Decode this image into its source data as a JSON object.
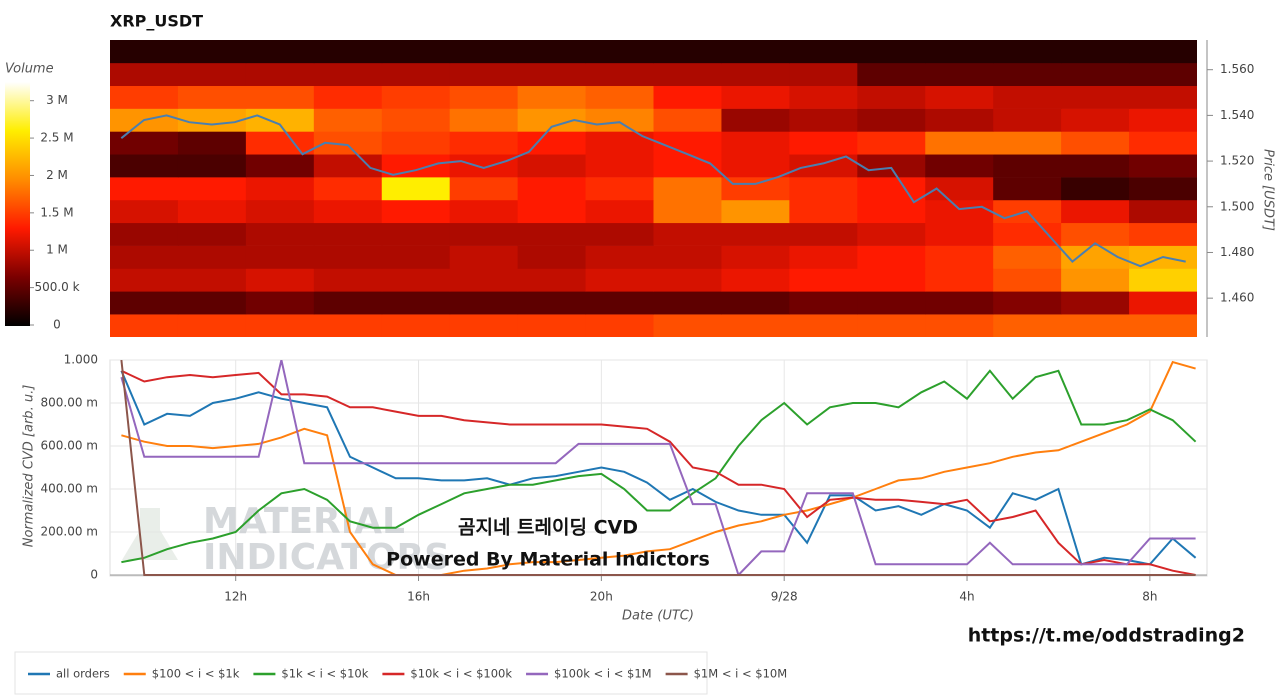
{
  "chart_data": [
    {
      "type": "heatmap",
      "title": "XRP_USDT",
      "colorbar_label": "Volume",
      "y_label": "Price [USDT]",
      "xlim": [
        9.25,
        33.25
      ],
      "ylim": [
        1.443,
        1.573
      ],
      "x_bins": [
        9.25,
        10.75,
        12.25,
        13.75,
        15.25,
        16.75,
        18.25,
        19.75,
        21.25,
        22.75,
        24.25,
        25.75,
        27.25,
        28.75,
        30.25,
        31.75,
        33.25
      ],
      "y_bins": [
        1.443,
        1.453,
        1.463,
        1.473,
        1.483,
        1.493,
        1.503,
        1.513,
        1.523,
        1.533,
        1.543,
        1.553,
        1.563,
        1.573
      ],
      "z": [
        [
          1500000.0,
          1500000.0,
          1500000.0,
          1500000.0,
          1500000.0,
          1500000.0,
          1500000.0,
          1500000.0,
          1600000.0,
          1600000.0,
          1600000.0,
          1600000.0,
          1600000.0,
          1700000.0,
          1700000.0,
          1700000.0
        ],
        [
          500000.0,
          500000.0,
          600000.0,
          500000.0,
          500000.0,
          500000.0,
          500000.0,
          500000.0,
          500000.0,
          500000.0,
          600000.0,
          600000.0,
          600000.0,
          700000.0,
          800000.0,
          1200000.0
        ],
        [
          1000000.0,
          1000000.0,
          1100000.0,
          1000000.0,
          1000000.0,
          1000000.0,
          1000000.0,
          1100000.0,
          1100000.0,
          1200000.0,
          1300000.0,
          1300000.0,
          1400000.0,
          1600000.0,
          2000000.0,
          2400000.0
        ],
        [
          900000.0,
          900000.0,
          900000.0,
          900000.0,
          900000.0,
          1000000.0,
          900000.0,
          1000000.0,
          1000000.0,
          1100000.0,
          1200000.0,
          1300000.0,
          1400000.0,
          1700000.0,
          2100000.0,
          2200000.0
        ],
        [
          800000.0,
          800000.0,
          900000.0,
          900000.0,
          900000.0,
          900000.0,
          900000.0,
          900000.0,
          1000000.0,
          1000000.0,
          1000000.0,
          1100000.0,
          1200000.0,
          1400000.0,
          1600000.0,
          1500000.0
        ],
        [
          1100000.0,
          1200000.0,
          1100000.0,
          1200000.0,
          1300000.0,
          1200000.0,
          1300000.0,
          1200000.0,
          1800000.0,
          2000000.0,
          1400000.0,
          1300000.0,
          1200000.0,
          1500000.0,
          1200000.0,
          900000.0
        ],
        [
          1300000.0,
          1300000.0,
          1200000.0,
          1400000.0,
          2600000.0,
          1500000.0,
          1300000.0,
          1400000.0,
          1800000.0,
          1500000.0,
          1400000.0,
          1300000.0,
          1100000.0,
          500000.0,
          300000.0,
          400000.0
        ],
        [
          400000.0,
          400000.0,
          600000.0,
          1000000.0,
          1300000.0,
          1200000.0,
          1100000.0,
          1200000.0,
          1300000.0,
          1200000.0,
          1100000.0,
          800000.0,
          600000.0,
          500000.0,
          500000.0,
          600000.0
        ],
        [
          600000.0,
          500000.0,
          1400000.0,
          1600000.0,
          1500000.0,
          1400000.0,
          1300000.0,
          1200000.0,
          1300000.0,
          1200000.0,
          1300000.0,
          1400000.0,
          1800000.0,
          1800000.0,
          1600000.0,
          1400000.0
        ],
        [
          2000000.0,
          2100000.0,
          2200000.0,
          1700000.0,
          1600000.0,
          1800000.0,
          2000000.0,
          1900000.0,
          1600000.0,
          800000.0,
          900000.0,
          800000.0,
          900000.0,
          1000000.0,
          1100000.0,
          1200000.0
        ],
        [
          1500000.0,
          1600000.0,
          1600000.0,
          1400000.0,
          1500000.0,
          1600000.0,
          1800000.0,
          1700000.0,
          1300000.0,
          1200000.0,
          1100000.0,
          1000000.0,
          1100000.0,
          1000000.0,
          1000000.0,
          1000000.0
        ],
        [
          900000.0,
          900000.0,
          900000.0,
          900000.0,
          900000.0,
          900000.0,
          900000.0,
          900000.0,
          900000.0,
          900000.0,
          900000.0,
          500000.0,
          500000.0,
          500000.0,
          500000.0,
          500000.0
        ],
        [
          200000.0,
          200000.0,
          200000.0,
          200000.0,
          200000.0,
          200000.0,
          200000.0,
          200000.0,
          200000.0,
          200000.0,
          200000.0,
          200000.0,
          200000.0,
          200000.0,
          200000.0,
          200000.0
        ]
      ],
      "clim": [
        0,
        3250000
      ],
      "colormap": [
        "#000000",
        "#7a0000",
        "#ff1a00",
        "#ff8c00",
        "#ffee00",
        "#ffffff"
      ],
      "cticks": [
        0,
        {
          "value": 500000,
          "label": "500.0 k"
        },
        {
          "value": 1000000,
          "label": "1 M"
        },
        {
          "value": 1500000,
          "label": "1.5 M"
        },
        {
          "value": 2000000,
          "label": "2 M"
        },
        {
          "value": 2500000,
          "label": "2.5 M"
        },
        {
          "value": 3000000,
          "label": "3 M"
        }
      ],
      "yticks": [
        {
          "value": 1.46,
          "label": "1.460"
        },
        {
          "value": 1.48,
          "label": "1.480"
        },
        {
          "value": 1.5,
          "label": "1.500"
        },
        {
          "value": 1.52,
          "label": "1.520"
        },
        {
          "value": 1.54,
          "label": "1.540"
        },
        {
          "value": 1.56,
          "label": "1.560"
        }
      ],
      "line": {
        "color": "#4a7fb0",
        "x": [
          9.5,
          10,
          10.5,
          11,
          11.5,
          12,
          12.5,
          13,
          13.5,
          14,
          14.5,
          15,
          15.5,
          16,
          16.5,
          17,
          17.5,
          18,
          18.5,
          19,
          19.5,
          20,
          20.5,
          21,
          21.5,
          22,
          22.5,
          23,
          23.5,
          24,
          24.5,
          25,
          25.5,
          26,
          26.5,
          27,
          27.5,
          28,
          28.5,
          29,
          29.5,
          30,
          30.5,
          31,
          31.5,
          32,
          32.5,
          33
        ],
        "values": [
          1.53,
          1.538,
          1.54,
          1.537,
          1.536,
          1.537,
          1.54,
          1.536,
          1.523,
          1.528,
          1.527,
          1.517,
          1.514,
          1.516,
          1.519,
          1.52,
          1.517,
          1.52,
          1.524,
          1.535,
          1.538,
          1.536,
          1.537,
          1.531,
          1.527,
          1.523,
          1.519,
          1.51,
          1.51,
          1.513,
          1.517,
          1.519,
          1.522,
          1.516,
          1.517,
          1.502,
          1.508,
          1.499,
          1.5,
          1.495,
          1.498,
          1.487,
          1.476,
          1.484,
          1.478,
          1.474,
          1.478,
          1.476
        ]
      }
    },
    {
      "type": "line",
      "x_label": "Date (UTC)",
      "y_label": "Normalized CVD [arb. u.]",
      "grid": true,
      "xlim": [
        9.25,
        33.25
      ],
      "ylim": [
        0,
        1.0
      ],
      "xticks": [
        {
          "value": 12,
          "label": "12h"
        },
        {
          "value": 16,
          "label": "16h"
        },
        {
          "value": 20,
          "label": "20h"
        },
        {
          "value": 24,
          "label": "9/28"
        },
        {
          "value": 28,
          "label": "4h"
        },
        {
          "value": 32,
          "label": "8h"
        }
      ],
      "yticks": [
        0,
        {
          "value": 0.2,
          "label": "200.00 m"
        },
        {
          "value": 0.4,
          "label": "400.00 m"
        },
        {
          "value": 0.6,
          "label": "600.00 m"
        },
        {
          "value": 0.8,
          "label": "800.00 m"
        },
        {
          "value": 1.0,
          "label": "1.000"
        }
      ],
      "x": [
        9.5,
        10,
        10.5,
        11,
        11.5,
        12,
        12.5,
        13,
        13.5,
        14,
        14.5,
        15,
        15.5,
        16,
        16.5,
        17,
        17.5,
        18,
        18.5,
        19,
        19.5,
        20,
        20.5,
        21,
        21.5,
        22,
        22.5,
        23,
        23.5,
        24,
        24.5,
        25,
        25.5,
        26,
        26.5,
        27,
        27.5,
        28,
        28.5,
        29,
        29.5,
        30,
        30.5,
        31,
        31.5,
        32,
        32.5,
        33
      ],
      "series": [
        {
          "name": "all orders",
          "color": "#1f77b4",
          "values": [
            0.95,
            0.7,
            0.75,
            0.74,
            0.8,
            0.82,
            0.85,
            0.82,
            0.8,
            0.78,
            0.55,
            0.5,
            0.45,
            0.45,
            0.44,
            0.44,
            0.45,
            0.42,
            0.45,
            0.46,
            0.48,
            0.5,
            0.48,
            0.43,
            0.35,
            0.4,
            0.34,
            0.3,
            0.28,
            0.28,
            0.15,
            0.37,
            0.37,
            0.3,
            0.32,
            0.28,
            0.33,
            0.3,
            0.22,
            0.38,
            0.35,
            0.4,
            0.05,
            0.08,
            0.07,
            0.05,
            0.17,
            0.08
          ]
        },
        {
          "name": "$100 < i < $1k",
          "color": "#ff7f0e",
          "values": [
            0.65,
            0.62,
            0.6,
            0.6,
            0.59,
            0.6,
            0.61,
            0.64,
            0.68,
            0.65,
            0.2,
            0.05,
            0,
            0,
            0,
            0.02,
            0.03,
            0.05,
            0.06,
            0.06,
            0.07,
            0.08,
            0.09,
            0.11,
            0.12,
            0.16,
            0.2,
            0.23,
            0.25,
            0.28,
            0.3,
            0.33,
            0.36,
            0.4,
            0.44,
            0.45,
            0.48,
            0.5,
            0.52,
            0.55,
            0.57,
            0.58,
            0.62,
            0.66,
            0.7,
            0.76,
            0.99,
            0.96
          ]
        },
        {
          "name": "$1k < i < $10k",
          "color": "#2ca02c",
          "values": [
            0.06,
            0.08,
            0.12,
            0.15,
            0.17,
            0.2,
            0.3,
            0.38,
            0.4,
            0.35,
            0.25,
            0.22,
            0.22,
            0.28,
            0.33,
            0.38,
            0.4,
            0.42,
            0.42,
            0.44,
            0.46,
            0.47,
            0.4,
            0.3,
            0.3,
            0.38,
            0.45,
            0.6,
            0.72,
            0.8,
            0.7,
            0.78,
            0.8,
            0.8,
            0.78,
            0.85,
            0.9,
            0.82,
            0.95,
            0.82,
            0.92,
            0.95,
            0.7,
            0.7,
            0.72,
            0.77,
            0.72,
            0.62
          ]
        },
        {
          "name": "$10k < i < $100k",
          "color": "#d62728",
          "values": [
            0.95,
            0.9,
            0.92,
            0.93,
            0.92,
            0.93,
            0.94,
            0.84,
            0.84,
            0.83,
            0.78,
            0.78,
            0.76,
            0.74,
            0.74,
            0.72,
            0.71,
            0.7,
            0.7,
            0.7,
            0.7,
            0.7,
            0.69,
            0.68,
            0.62,
            0.5,
            0.48,
            0.42,
            0.42,
            0.4,
            0.27,
            0.35,
            0.36,
            0.35,
            0.35,
            0.34,
            0.33,
            0.35,
            0.25,
            0.27,
            0.3,
            0.15,
            0.05,
            0.07,
            0.05,
            0.05,
            0.02,
            0
          ]
        },
        {
          "name": "$100k < i < $1M",
          "color": "#9467bd",
          "values": [
            0.92,
            0.55,
            0.55,
            0.55,
            0.55,
            0.55,
            0.55,
            1.0,
            0.52,
            0.52,
            0.52,
            0.52,
            0.52,
            0.52,
            0.52,
            0.52,
            0.52,
            0.52,
            0.52,
            0.52,
            0.61,
            0.61,
            0.61,
            0.61,
            0.61,
            0.33,
            0.33,
            0,
            0.11,
            0.11,
            0.38,
            0.38,
            0.38,
            0.05,
            0.05,
            0.05,
            0.05,
            0.05,
            0.15,
            0.05,
            0.05,
            0.05,
            0.05,
            0.05,
            0.05,
            0.17,
            0.17,
            0.17
          ]
        },
        {
          "name": "$1M < i < $10M",
          "color": "#8c564b",
          "values": [
            1.0,
            0,
            0,
            0,
            0,
            0,
            0,
            0,
            0,
            0,
            0,
            0,
            0,
            0,
            0,
            0,
            0,
            0,
            0,
            0,
            0,
            0,
            0,
            0,
            0,
            0,
            0,
            0,
            0,
            0,
            0,
            0,
            0,
            0,
            0,
            0,
            0,
            0,
            0,
            0,
            0,
            0,
            0,
            0,
            0,
            0,
            0,
            0
          ]
        }
      ],
      "watermark": [
        "MATERIAL",
        "INDICATORS"
      ],
      "annotations": [
        "곰지네 트레이딩 CVD",
        "Powered By Material Indictors"
      ]
    }
  ],
  "link": "https://t.me/oddstrading2"
}
